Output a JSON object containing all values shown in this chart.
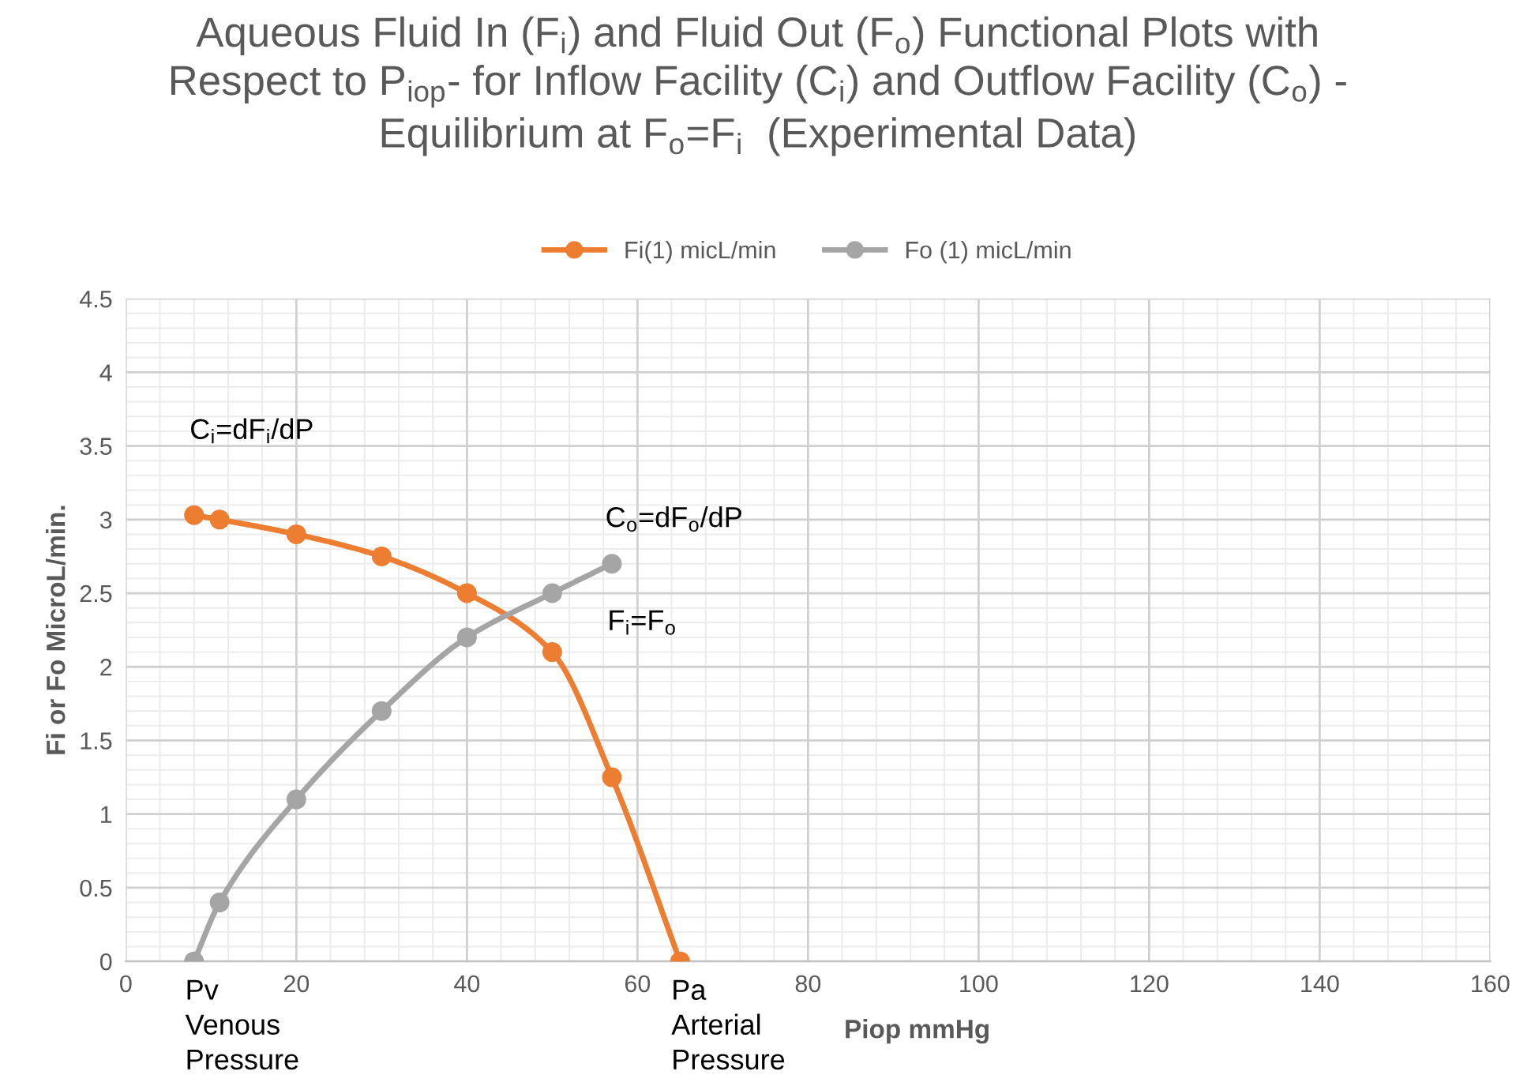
{
  "chart_data": {
    "type": "line",
    "title": "Aqueous Fluid In (F$_{i}$) and Fluid Out (F$_{o}$) Functional Plots with\nRespect to P$_{iop}$- for Inflow Facility (C$_{i}$) and Outflow Facility (C$_{o}$) -\nEquilibrium at F$_{o}$=F$_{i}$  (Experimental Data)",
    "xlabel": "Piop mmHg",
    "ylabel": "Fi or Fo MicroL/min.",
    "series": [
      {
        "name": "Fi(1) micL/min",
        "color": "#ed7d31",
        "x": [
          8,
          11,
          20,
          30,
          40,
          50,
          57,
          65
        ],
        "values": [
          3.03,
          3.0,
          2.9,
          2.75,
          2.5,
          2.1,
          1.25,
          0
        ]
      },
      {
        "name": "Fo (1) micL/min",
        "color": "#a5a5a5",
        "x": [
          8,
          11,
          20,
          30,
          40,
          50,
          57
        ],
        "values": [
          0,
          0.4,
          1.1,
          1.7,
          2.2,
          2.5,
          2.7
        ]
      }
    ],
    "xlim": [
      0,
      160
    ],
    "xticks": [
      0,
      20,
      40,
      60,
      80,
      100,
      120,
      140,
      160
    ],
    "ylim": [
      0,
      4.5
    ],
    "yticks": [
      0,
      0.5,
      1,
      1.5,
      2,
      2.5,
      3,
      3.5,
      4,
      4.5
    ],
    "annotations": [
      {
        "text": "C$_{i}$=dF$_{i}$/dP",
        "x": 8,
        "y": 3.03
      },
      {
        "text": "C$_{o}$=dF$_{o}$/dP",
        "x": 57,
        "y": 2.7
      },
      "F$_{i}$=F$_{o}$",
      {
        "text": "Pv\nVenous\nPressure",
        "x": 8,
        "y": 0
      },
      {
        "text": "Pa\nArterial\nPressure",
        "x": 65,
        "y": 0
      }
    ],
    "grid": true,
    "legend": "top",
    "marker": "circle",
    "line_style": "solid"
  }
}
